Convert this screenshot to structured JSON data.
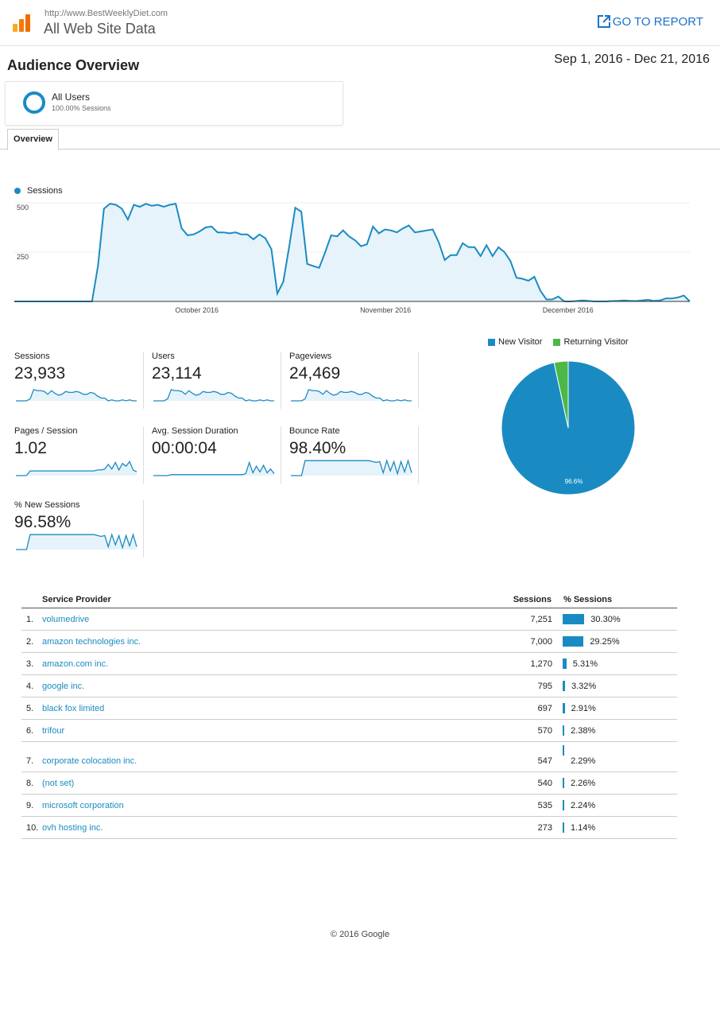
{
  "header": {
    "url": "http://www.BestWeeklyDiet.com",
    "title": "All Web Site Data",
    "goto_label": "GO TO REPORT",
    "logo_icon": "analytics-logo-icon",
    "external_icon": "external-link-icon"
  },
  "page": {
    "title": "Audience Overview",
    "date_range": "Sep 1, 2016 - Dec 21, 2016"
  },
  "segment": {
    "name": "All Users",
    "sub": "100.00% Sessions"
  },
  "tabs": [
    {
      "label": "Overview"
    }
  ],
  "colors": {
    "accent": "#1a8bc2",
    "returning": "#4cb848",
    "link": "#1a73c8"
  },
  "chart_data": [
    {
      "type": "area",
      "series": [
        {
          "name": "Sessions"
        }
      ],
      "y_ticks": [
        "500",
        "250"
      ],
      "ylim": [
        0,
        500
      ],
      "x_ticks": [
        "October 2016",
        "November 2016",
        "December 2016"
      ],
      "x_start": "2016-09-01",
      "x_end": "2016-12-21",
      "values": [
        0,
        0,
        0,
        0,
        0,
        0,
        0,
        0,
        0,
        0,
        0,
        0,
        0,
        0,
        180,
        470,
        495,
        490,
        470,
        415,
        490,
        480,
        495,
        485,
        490,
        480,
        490,
        495,
        370,
        335,
        340,
        355,
        375,
        380,
        350,
        350,
        345,
        350,
        340,
        340,
        315,
        340,
        320,
        265,
        40,
        100,
        280,
        475,
        455,
        190,
        180,
        170,
        250,
        335,
        330,
        360,
        330,
        310,
        280,
        290,
        380,
        345,
        365,
        360,
        350,
        370,
        385,
        350,
        355,
        360,
        365,
        300,
        210,
        235,
        235,
        295,
        275,
        275,
        230,
        285,
        230,
        275,
        250,
        205,
        120,
        115,
        105,
        125,
        55,
        10,
        10,
        25,
        0,
        0,
        2,
        5,
        3,
        0,
        0,
        0,
        2,
        3,
        5,
        3,
        2,
        5,
        8,
        3,
        5,
        15,
        15,
        20,
        30,
        0
      ]
    },
    {
      "type": "pie",
      "categories": [
        "New Visitor",
        "Returning Visitor"
      ],
      "values": [
        96.6,
        3.4
      ],
      "slice_labels": [
        "96.6%",
        ""
      ]
    }
  ],
  "metrics": [
    {
      "label": "Sessions",
      "value": "23,933",
      "spark": [
        0,
        0,
        0,
        0,
        2,
        12,
        11,
        11,
        10,
        7,
        11,
        8,
        6,
        7,
        10,
        9,
        9,
        10,
        9,
        7,
        7,
        9,
        8,
        5,
        3,
        3,
        0,
        1,
        0,
        0,
        1,
        0,
        1,
        0,
        0
      ]
    },
    {
      "label": "Users",
      "value": "23,114",
      "spark": [
        0,
        0,
        0,
        0,
        2,
        12,
        11,
        11,
        10,
        7,
        11,
        8,
        6,
        7,
        10,
        9,
        9,
        10,
        9,
        7,
        7,
        9,
        8,
        5,
        3,
        3,
        0,
        1,
        0,
        0,
        1,
        0,
        1,
        0,
        0
      ]
    },
    {
      "label": "Pageviews",
      "value": "24,469",
      "spark": [
        0,
        0,
        0,
        0,
        2,
        12,
        11,
        11,
        10,
        7,
        11,
        8,
        6,
        7,
        10,
        9,
        9,
        10,
        9,
        7,
        7,
        9,
        8,
        5,
        3,
        3,
        0,
        1,
        0,
        0,
        1,
        0,
        1,
        0,
        0
      ]
    },
    {
      "label": "Pages / Session",
      "value": "1.02",
      "spark": [
        0,
        0,
        0,
        0,
        5,
        5,
        5,
        5,
        5,
        5,
        5,
        5,
        5,
        5,
        5,
        5,
        5,
        5,
        5,
        5,
        5,
        5,
        5,
        6,
        6,
        7,
        12,
        7,
        14,
        6,
        13,
        10,
        15,
        6,
        4
      ]
    },
    {
      "label": "Avg. Session Duration",
      "value": "00:00:04",
      "spark": [
        0,
        0,
        0,
        0,
        0,
        1,
        1,
        1,
        1,
        1,
        1,
        1,
        1,
        1,
        1,
        1,
        1,
        1,
        1,
        1,
        1,
        1,
        1,
        1,
        1,
        1,
        2,
        14,
        3,
        10,
        4,
        11,
        3,
        7,
        2
      ]
    },
    {
      "label": "Bounce Rate",
      "value": "98.40%",
      "spark": [
        0,
        0,
        0,
        0,
        16,
        16,
        16,
        16,
        16,
        16,
        16,
        16,
        16,
        16,
        16,
        16,
        16,
        16,
        16,
        16,
        16,
        16,
        16,
        15,
        14,
        15,
        3,
        16,
        5,
        15,
        2,
        15,
        4,
        16,
        3
      ]
    },
    {
      "label": "% New Sessions",
      "value": "96.58%",
      "spark": [
        0,
        0,
        0,
        0,
        16,
        16,
        16,
        16,
        16,
        16,
        16,
        16,
        16,
        16,
        16,
        16,
        16,
        16,
        16,
        16,
        16,
        16,
        16,
        15,
        14,
        15,
        3,
        16,
        5,
        15,
        2,
        15,
        4,
        16,
        3
      ]
    }
  ],
  "table": {
    "headers": {
      "provider": "Service Provider",
      "sessions": "Sessions",
      "pct": "% Sessions"
    },
    "rows": [
      {
        "idx": "1.",
        "name": "volumedrive",
        "sessions": "7,251",
        "pct": "30.30%",
        "share": 30.3
      },
      {
        "idx": "2.",
        "name": "amazon technologies inc.",
        "sessions": "7,000",
        "pct": "29.25%",
        "share": 29.25
      },
      {
        "idx": "3.",
        "name": "amazon.com inc.",
        "sessions": "1,270",
        "pct": "5.31%",
        "share": 5.31
      },
      {
        "idx": "4.",
        "name": "google inc.",
        "sessions": "795",
        "pct": "3.32%",
        "share": 3.32
      },
      {
        "idx": "5.",
        "name": "black fox limited",
        "sessions": "697",
        "pct": "2.91%",
        "share": 2.91
      },
      {
        "idx": "6.",
        "name": "trifour",
        "sessions": "570",
        "pct": "2.38%",
        "share": 2.38
      },
      {
        "idx": "7.",
        "name": "corporate colocation inc.",
        "sessions": "547",
        "pct": "2.29%",
        "share": 2.29
      },
      {
        "idx": "8.",
        "name": "(not set)",
        "sessions": "540",
        "pct": "2.26%",
        "share": 2.26
      },
      {
        "idx": "9.",
        "name": "microsoft corporation",
        "sessions": "535",
        "pct": "2.24%",
        "share": 2.24
      },
      {
        "idx": "10.",
        "name": "ovh hosting inc.",
        "sessions": "273",
        "pct": "1.14%",
        "share": 1.14
      }
    ]
  },
  "footer": "© 2016 Google"
}
